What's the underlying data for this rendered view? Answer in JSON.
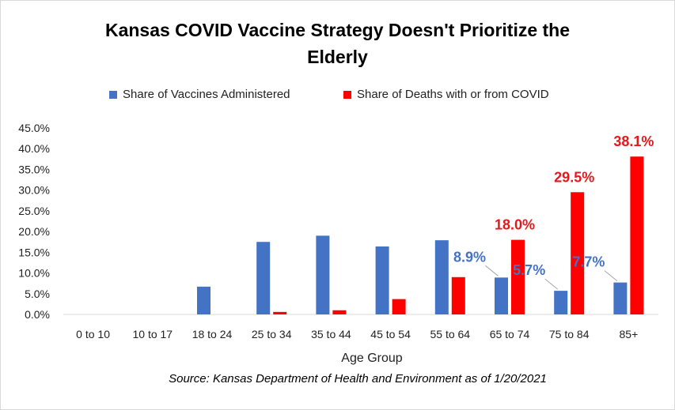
{
  "chart_data": {
    "type": "bar",
    "title_line1": "Kansas COVID Vaccine Strategy Doesn't Prioritize the",
    "title_line2": "Elderly",
    "xlabel": "Age Group",
    "ylabel": "",
    "source": "Source: Kansas Department of Health and Environment as of 1/20/2021",
    "ylim": [
      0,
      45
    ],
    "y_ticks": [
      "0.0%",
      "5.0%",
      "10.0%",
      "15.0%",
      "20.0%",
      "25.0%",
      "30.0%",
      "35.0%",
      "40.0%",
      "45.0%"
    ],
    "categories": [
      "0 to 10",
      "10 to 17",
      "18 to 24",
      "25 to 34",
      "35 to 44",
      "45 to 54",
      "55 to 64",
      "65 to 74",
      "75 to 84",
      "85+"
    ],
    "series": [
      {
        "name": "Share of Vaccines Administered",
        "color": "#4472c4",
        "values": [
          0.0,
          0.0,
          6.7,
          17.5,
          19.0,
          16.4,
          17.9,
          8.9,
          5.7,
          7.7
        ]
      },
      {
        "name": "Share of Deaths with or from COVID",
        "color": "#ff0000",
        "values": [
          0.0,
          0.0,
          0.0,
          0.6,
          1.0,
          3.7,
          9.0,
          18.0,
          29.5,
          38.1
        ]
      }
    ],
    "data_labels": [
      {
        "series": 1,
        "index": 7,
        "text": "18.0%"
      },
      {
        "series": 1,
        "index": 8,
        "text": "29.5%"
      },
      {
        "series": 1,
        "index": 9,
        "text": "38.1%"
      },
      {
        "series": 0,
        "index": 7,
        "text": "8.9%"
      },
      {
        "series": 0,
        "index": 8,
        "text": "5.7%"
      },
      {
        "series": 0,
        "index": 9,
        "text": "7.7%"
      }
    ],
    "grid": false,
    "legend_position": "top"
  }
}
